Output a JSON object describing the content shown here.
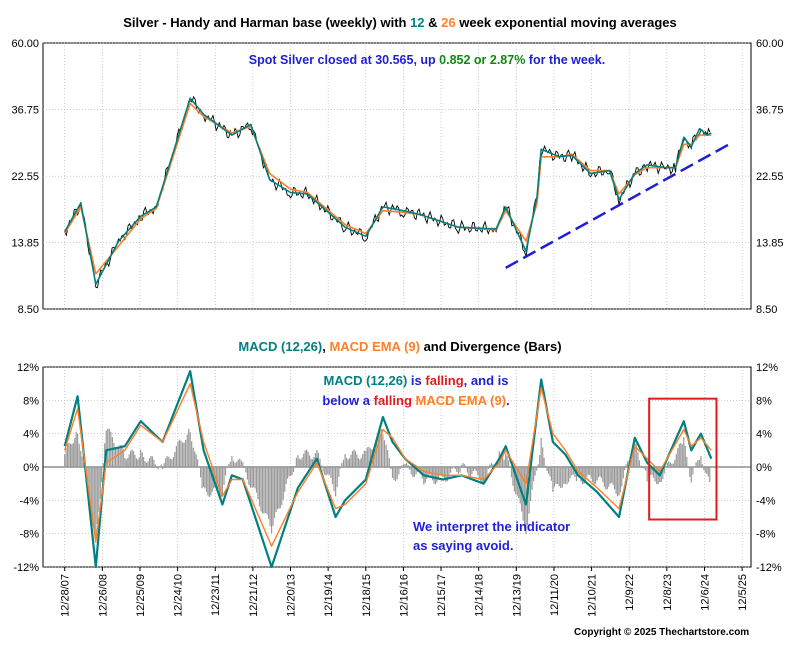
{
  "chart_data": [
    {
      "type": "line",
      "title_parts": [
        {
          "text": "Silver - Handy and Harman base (weekly) with ",
          "color": "#000000"
        },
        {
          "text": "12",
          "color": "#008080"
        },
        {
          "text": " & ",
          "color": "#000000"
        },
        {
          "text": "26",
          "color": "#ff7f27"
        },
        {
          "text": " week exponential moving averages",
          "color": "#000000"
        }
      ],
      "y_scale": "log",
      "ylim": [
        8.5,
        60.0
      ],
      "y_ticks": [
        "60.00",
        "36.75",
        "22.55",
        "13.85",
        "8.50"
      ],
      "y_tick_values": [
        60.0,
        36.75,
        22.55,
        13.85,
        8.5
      ],
      "annotation_parts": [
        {
          "text": "Spot Silver closed at 30.565, up ",
          "color": "#1f1fd6"
        },
        {
          "text": "0.852 or 2.87%",
          "color": "#118811"
        },
        {
          "text": " for the week.",
          "color": "#1f1fd6"
        }
      ],
      "x": [
        "2007-12-28",
        "2008-06-01",
        "2008-10-24",
        "2009-06-01",
        "2010-01-01",
        "2010-06-01",
        "2011-04-25",
        "2011-09-01",
        "2012-06-01",
        "2012-12-01",
        "2013-06-01",
        "2013-12-20",
        "2014-06-01",
        "2015-06-01",
        "2015-12-18",
        "2016-06-01",
        "2016-12-16",
        "2017-06-01",
        "2018-06-01",
        "2019-06-01",
        "2019-09-01",
        "2020-03-16",
        "2020-07-01",
        "2020-08-10",
        "2021-02-01",
        "2021-06-01",
        "2021-12-01",
        "2022-06-01",
        "2022-09-01",
        "2023-02-01",
        "2023-06-01",
        "2023-12-01",
        "2024-03-01",
        "2024-05-20",
        "2024-08-01",
        "2024-10-20",
        "2025-01-01",
        "2025-02-10"
      ],
      "series": [
        {
          "name": "12",
          "color": "#008080",
          "values": [
            15.0,
            18.5,
            10.2,
            14.0,
            16.8,
            18.0,
            40.0,
            35.5,
            30.5,
            33.0,
            22.0,
            20.0,
            19.8,
            15.5,
            14.5,
            18.0,
            17.5,
            17.0,
            15.5,
            15.3,
            18.0,
            13.0,
            19.5,
            27.5,
            26.0,
            26.3,
            23.0,
            23.5,
            19.0,
            23.0,
            24.5,
            24.0,
            24.0,
            30.0,
            28.0,
            32.0,
            30.5,
            31.0
          ]
        },
        {
          "name": "26",
          "color": "#ff7f27",
          "values": [
            14.8,
            18.0,
            11.0,
            13.5,
            16.5,
            17.8,
            38.5,
            35.0,
            31.0,
            32.5,
            23.0,
            20.5,
            20.0,
            15.8,
            14.8,
            17.5,
            17.3,
            17.0,
            15.5,
            15.2,
            17.5,
            14.0,
            18.5,
            26.0,
            26.0,
            26.5,
            23.5,
            23.5,
            19.8,
            22.8,
            24.0,
            24.0,
            24.0,
            28.5,
            28.5,
            30.5,
            30.5,
            30.5
          ]
        }
      ],
      "trend_line": {
        "from": {
          "x": "2019-09-01",
          "y": 11.5
        },
        "to": {
          "x": "2025-08-01",
          "y": 28.5
        },
        "color": "#1f1fd6"
      }
    },
    {
      "type": "line",
      "title_parts": [
        {
          "text": "MACD (12,26)",
          "color": "#008080"
        },
        {
          "text": ", ",
          "color": "#000000"
        },
        {
          "text": "MACD EMA (9)",
          "color": "#ff7f27"
        },
        {
          "text": " and Divergence (Bars)",
          "color": "#000000"
        }
      ],
      "ylim": [
        -12,
        12
      ],
      "y_ticks": [
        "12%",
        "8%",
        "4%",
        "0%",
        "-4%",
        "-8%",
        "-12%"
      ],
      "y_tick_values": [
        12,
        8,
        4,
        0,
        -4,
        -8,
        -12
      ],
      "annotation1_line1_parts": [
        {
          "text": "MACD (12,26)",
          "color": "#008080"
        },
        {
          "text": " is ",
          "color": "#1f1fd6"
        },
        {
          "text": "falling",
          "color": "#e21c1c"
        },
        {
          "text": ", and is",
          "color": "#1f1fd6"
        }
      ],
      "annotation1_line2_parts": [
        {
          "text": "below a ",
          "color": "#1f1fd6"
        },
        {
          "text": "falling",
          "color": "#e21c1c"
        },
        {
          "text": " ",
          "color": "#1f1fd6"
        },
        {
          "text": "MACD EMA (9)",
          "color": "#ff7f27"
        },
        {
          "text": ".",
          "color": "#1f1fd6"
        }
      ],
      "annotation2_line1": "We interpret the indicator",
      "annotation2_line2": "as saying avoid.",
      "x": [
        "2007-12-28",
        "2008-05-01",
        "2008-10-24",
        "2009-02-01",
        "2009-08-01",
        "2010-01-01",
        "2010-08-01",
        "2011-04-25",
        "2011-09-01",
        "2012-03-01",
        "2012-06-01",
        "2012-09-15",
        "2013-06-20",
        "2014-03-01",
        "2014-09-01",
        "2015-03-01",
        "2015-06-01",
        "2015-12-18",
        "2016-06-01",
        "2016-09-01",
        "2017-01-01",
        "2017-07-01",
        "2018-01-01",
        "2018-07-01",
        "2019-02-01",
        "2019-07-01",
        "2019-09-01",
        "2020-03-16",
        "2020-08-10",
        "2020-12-01",
        "2021-04-01",
        "2021-08-01",
        "2022-02-01",
        "2022-09-01",
        "2023-02-01",
        "2023-06-01",
        "2023-10-01",
        "2024-05-20",
        "2024-08-01",
        "2024-11-01",
        "2025-02-10"
      ],
      "series": [
        {
          "name": "MACD (12,26)",
          "color": "#008080",
          "values": [
            2.5,
            8.5,
            -12.0,
            2.0,
            2.5,
            5.5,
            3.0,
            11.5,
            2.0,
            -4.5,
            -1.0,
            -1.5,
            -12.0,
            -2.5,
            1.0,
            -6.0,
            -4.0,
            -1.5,
            6.0,
            3.0,
            1.0,
            -1.0,
            -1.5,
            -1.0,
            -2.0,
            1.0,
            2.5,
            -4.5,
            10.5,
            3.0,
            1.5,
            -1.0,
            -3.0,
            -6.0,
            3.5,
            0.5,
            -1.0,
            5.5,
            2.0,
            4.0,
            1.0
          ]
        },
        {
          "name": "MACD EMA (9)",
          "color": "#ff7f27",
          "values": [
            2.0,
            7.0,
            -9.0,
            0.5,
            2.0,
            5.0,
            3.0,
            10.0,
            3.0,
            -3.5,
            -1.5,
            -1.5,
            -9.5,
            -3.0,
            0.5,
            -5.0,
            -4.5,
            -2.0,
            4.5,
            3.5,
            1.0,
            -0.5,
            -1.0,
            -1.0,
            -1.5,
            0.5,
            2.0,
            -2.0,
            9.5,
            4.0,
            2.0,
            -0.5,
            -2.5,
            -5.0,
            2.5,
            1.0,
            -0.5,
            4.5,
            2.5,
            3.5,
            2.0
          ]
        }
      ],
      "highlight_box": {
        "x_from": "2023-06-20",
        "x_to": "2025-04-01",
        "y_from": -6.3,
        "y_to": 8.2,
        "color": "#e21c1c"
      }
    }
  ],
  "x_axis": {
    "tick_labels": [
      "12/28/07",
      "12/26/08",
      "12/25/09",
      "12/24/10",
      "12/23/11",
      "12/21/12",
      "12/20/13",
      "12/19/14",
      "12/18/15",
      "12/16/16",
      "12/15/17",
      "12/14/18",
      "12/13/19",
      "12/11/20",
      "12/10/21",
      "12/9/22",
      "12/8/23",
      "12/6/24",
      "12/5/25"
    ],
    "range": [
      "2007-06-01",
      "2026-03-01"
    ]
  },
  "copyright": "Copyright © 2025 Thechartstore.com"
}
